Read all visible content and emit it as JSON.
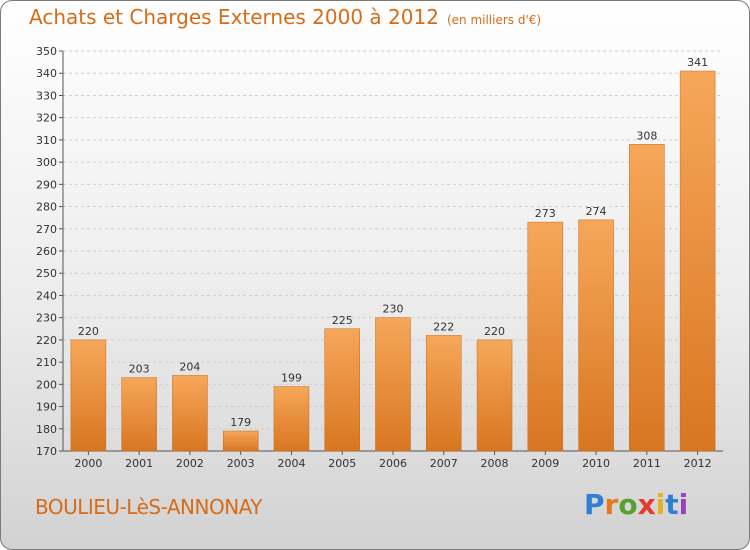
{
  "title": "Achats et Charges Externes 2000 à 2012",
  "subtitle": "(en milliers d'€)",
  "commune": "BOULIEU-LèS-ANNONAY",
  "logo": [
    "P",
    "r",
    "o",
    "x",
    "i",
    "t",
    "i"
  ],
  "colors": {
    "accent": "#d86b16",
    "bar_top": "#f6a75a",
    "bar_bottom": "#d87620",
    "grid": "#cfcfcf"
  },
  "chart_data": {
    "type": "bar",
    "categories": [
      "2000",
      "2001",
      "2002",
      "2003",
      "2004",
      "2005",
      "2006",
      "2007",
      "2008",
      "2009",
      "2010",
      "2011",
      "2012"
    ],
    "values": [
      220,
      203,
      204,
      179,
      199,
      225,
      230,
      222,
      220,
      273,
      274,
      308,
      341
    ],
    "ylim": [
      170,
      350
    ],
    "yticks": [
      170,
      180,
      190,
      200,
      210,
      220,
      230,
      240,
      250,
      260,
      270,
      280,
      290,
      300,
      310,
      320,
      330,
      340,
      350
    ],
    "grid": "horizontal dashed",
    "legend": "none"
  }
}
